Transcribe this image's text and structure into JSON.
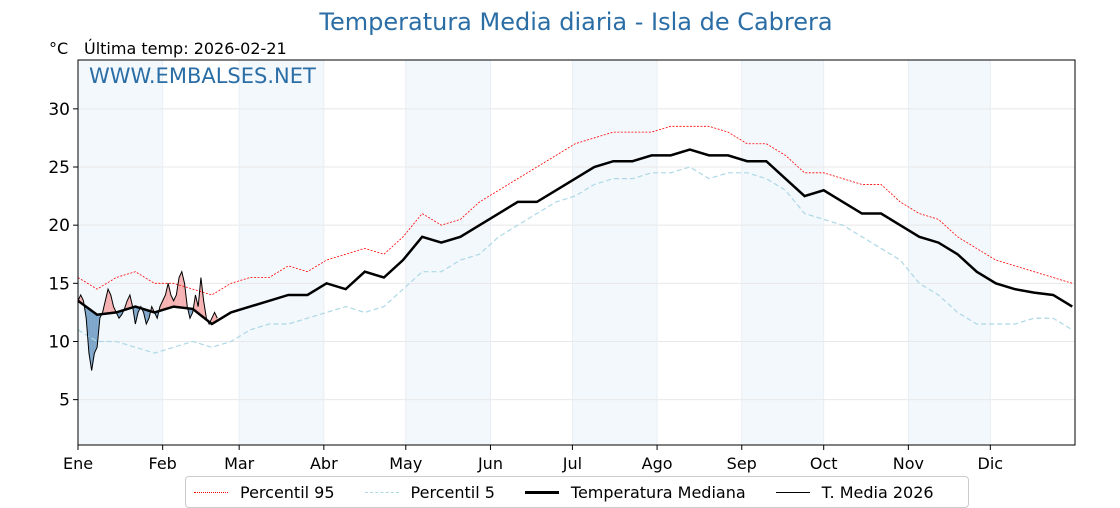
{
  "title": "Temperatura Media diaria - Isla de Cabrera",
  "unit": "°C",
  "last_temp_label": "Última temp: 2026-02-21",
  "watermark": "WWW.EMBALSES.NET",
  "colors": {
    "p95": "#ff0000",
    "p5": "#add8e6",
    "median": "#000000",
    "current": "#000000",
    "above": "#f4a5a5",
    "below": "#2f6fa8",
    "band": "#f3f8fc",
    "title": "#2b6ea6"
  },
  "chart_data": {
    "type": "line",
    "title": "Temperatura Media diaria - Isla de Cabrera",
    "xlabel": "",
    "ylabel": "°C",
    "ylim": [
      1.1,
      34.2
    ],
    "xlim": [
      0,
      365
    ],
    "yticks": [
      5,
      10,
      15,
      20,
      25,
      30
    ],
    "month_labels": [
      "Ene",
      "Feb",
      "Mar",
      "Abr",
      "May",
      "Jun",
      "Jul",
      "Ago",
      "Sep",
      "Oct",
      "Nov",
      "Dic"
    ],
    "month_starts": [
      0,
      31,
      59,
      90,
      120,
      151,
      181,
      212,
      243,
      273,
      304,
      334
    ],
    "grid": true,
    "legend_placement": "bottom-center",
    "legend": [
      "Percentil 95",
      "Percentil 5",
      "Temperatura Mediana",
      "T. Media 2026"
    ],
    "weekly_days_step": 7,
    "series": [
      {
        "name": "Percentil 95",
        "values": [
          15.5,
          14.5,
          15.5,
          16,
          15,
          15,
          14.5,
          14,
          15,
          15.5,
          15.5,
          16.5,
          16,
          17,
          17.5,
          18,
          17.5,
          19,
          21,
          20,
          20.5,
          22,
          23,
          24,
          25,
          26,
          27,
          27.5,
          28,
          28,
          28,
          28.5,
          28.5,
          28.5,
          28,
          27,
          27,
          26,
          24.5,
          24.5,
          24,
          23.5,
          23.5,
          22,
          21,
          20.5,
          19,
          18,
          17,
          16.5,
          16,
          15.5,
          15
        ]
      },
      {
        "name": "Percentil 5",
        "values": [
          11,
          10,
          10,
          9.5,
          9,
          9.5,
          10,
          9.5,
          10,
          11,
          11.5,
          11.5,
          12,
          12.5,
          13,
          12.5,
          13,
          14.5,
          16,
          16,
          17,
          17.5,
          19,
          20,
          21,
          22,
          22.5,
          23.5,
          24,
          24,
          24.5,
          24.5,
          25,
          24,
          24.5,
          24.5,
          24,
          23,
          21,
          20.5,
          20,
          19,
          18,
          17,
          15,
          14,
          12.5,
          11.5,
          11.5,
          11.5,
          12,
          12,
          11
        ]
      },
      {
        "name": "Temperatura Mediana",
        "values": [
          13.5,
          12.3,
          12.5,
          13,
          12.5,
          13,
          12.8,
          11.5,
          12.5,
          13,
          13.5,
          14,
          14,
          15,
          14.5,
          16,
          15.5,
          17,
          19,
          18.5,
          19,
          20,
          21,
          22,
          22,
          23,
          24,
          25,
          25.5,
          25.5,
          26,
          26,
          26.5,
          26,
          26,
          25.5,
          25.5,
          24,
          22.5,
          23,
          22,
          21,
          21,
          20,
          19,
          18.5,
          17.5,
          16,
          15,
          14.5,
          14.2,
          14,
          13
        ]
      },
      {
        "name": "T. Media 2026",
        "daily": true,
        "values": [
          13.5,
          14,
          13.5,
          12,
          9,
          7.5,
          9,
          9.5,
          12,
          12.5,
          13.5,
          14.5,
          14,
          13,
          12.5,
          12,
          12.3,
          12.8,
          13.5,
          14,
          13,
          11.5,
          12.5,
          13,
          12.5,
          11.5,
          12,
          13,
          12.5,
          12,
          13,
          13.5,
          14,
          15,
          14,
          13.5,
          14,
          15.5,
          16,
          15,
          13,
          12,
          12.5,
          14,
          13,
          15.5,
          13.5,
          12,
          11.5,
          12,
          12.5,
          12
        ]
      }
    ]
  }
}
